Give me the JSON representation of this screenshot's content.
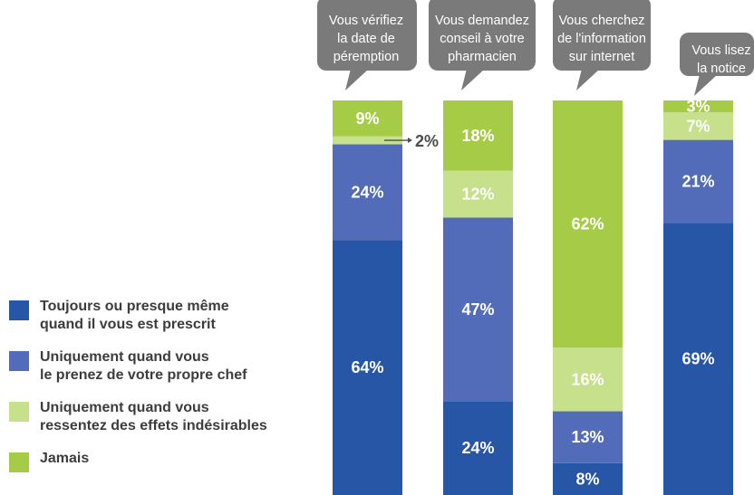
{
  "chart_data": {
    "type": "bar",
    "stacked": true,
    "percent_stacked": true,
    "categories": [
      [
        "Vous vérifiez",
        "la date de",
        "péremption"
      ],
      [
        "Vous demandez",
        "conseil à votre",
        "pharmacien"
      ],
      [
        "Vous cherchez",
        "de l'information",
        "sur internet"
      ],
      [
        "Vous lisez",
        "la notice"
      ]
    ],
    "series": [
      {
        "name": "Toujours ou presque même quand il vous est prescrit",
        "color": "#2756a7",
        "values": [
          64,
          24,
          8,
          69
        ],
        "labels": [
          "64%",
          "24%",
          "8%",
          "69%"
        ]
      },
      {
        "name": "Uniquement quand vous le prenez de votre propre chef",
        "color": "#536cb9",
        "values": [
          24,
          47,
          13,
          21
        ],
        "labels": [
          "24%",
          "47%",
          "13%",
          "21%"
        ]
      },
      {
        "name": "Uniquement quand vous ressentez des effets indésirables",
        "color": "#c6e08b",
        "values": [
          2,
          12,
          16,
          7
        ],
        "labels": [
          "",
          "12%",
          "16%",
          "7%"
        ]
      },
      {
        "name": "Jamais",
        "color": "#a6cb46",
        "values": [
          9,
          18,
          62,
          3
        ],
        "labels": [
          "9%",
          "18%",
          "62%",
          "3%"
        ]
      }
    ],
    "callout": {
      "category_index": 0,
      "series_index": 2,
      "label": "2%"
    },
    "label_colors": {
      "dark": "#ffffff",
      "light": "#ffffff"
    },
    "bubble_color": "#7a7a7a",
    "ylim": [
      0,
      100
    ],
    "legend_position": "left"
  },
  "legend": {
    "items": [
      {
        "label_line1": "Toujours ou presque même",
        "label_line2": "quand il vous est prescrit",
        "color": "#2756a7"
      },
      {
        "label_line1": "Uniquement quand vous",
        "label_line2": "le prenez de votre propre chef",
        "color": "#536cb9"
      },
      {
        "label_line1": "Uniquement quand vous",
        "label_line2": "ressentez des effets indésirables",
        "color": "#c6e08b"
      },
      {
        "label_line1": "Jamais",
        "label_line2": "",
        "color": "#a6cb46"
      }
    ]
  }
}
